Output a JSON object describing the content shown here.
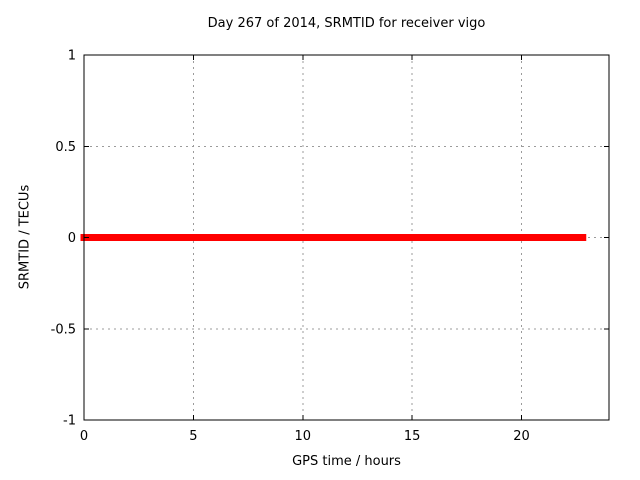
{
  "chart_data": {
    "type": "line",
    "title": "Day 267 of 2014, SRMTID for receiver vigo",
    "xlabel": "GPS time / hours",
    "ylabel": "SRMTID / TECUs",
    "xlim": [
      0,
      24
    ],
    "ylim": [
      -1,
      1
    ],
    "x_ticks": [
      0,
      5,
      10,
      15,
      20
    ],
    "y_ticks": [
      -1,
      -0.5,
      0,
      0.5,
      1
    ],
    "grid": true,
    "legend_position": "none",
    "series": [
      {
        "name": "SRMTID",
        "color": "#ff0000",
        "line_width": 7,
        "x": [
          0,
          22.8
        ],
        "y": [
          0,
          0
        ]
      }
    ]
  },
  "colors": {
    "background": "#ffffff",
    "axis": "#000000",
    "grid": "#9b9b9b",
    "text": "#000000"
  }
}
